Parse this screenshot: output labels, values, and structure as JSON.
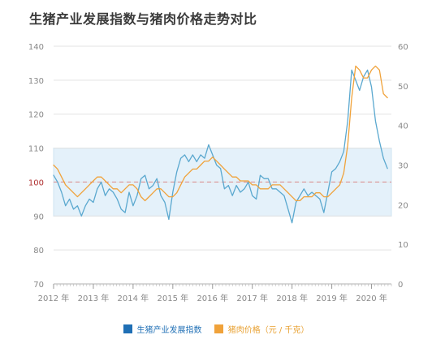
{
  "title": "生猪产业发展指数与猪肉价格走势对比",
  "chart_data": {
    "type": "line",
    "left_axis": {
      "range": [
        70,
        140
      ],
      "ticks": [
        70,
        80,
        90,
        100,
        110,
        120,
        130,
        140
      ]
    },
    "right_axis": {
      "range": [
        0,
        60
      ],
      "ticks": [
        0,
        10,
        20,
        30,
        40,
        50,
        60
      ]
    },
    "x_range": [
      2012,
      2020.5
    ],
    "x_ticks": [
      "2012 年",
      "2013 年",
      "2014 年",
      "2015 年",
      "2016 年",
      "2017 年",
      "2018 年",
      "2019 年",
      "2020 年"
    ],
    "band": [
      90,
      110
    ],
    "reference_line": 100,
    "series": [
      {
        "name": "生猪产业发展指数",
        "axis": "left",
        "color": "#5aa8cf",
        "points": [
          [
            2012.0,
            102
          ],
          [
            2012.1,
            100
          ],
          [
            2012.2,
            97
          ],
          [
            2012.3,
            93
          ],
          [
            2012.4,
            95
          ],
          [
            2012.5,
            92
          ],
          [
            2012.6,
            93
          ],
          [
            2012.7,
            90
          ],
          [
            2012.8,
            93
          ],
          [
            2012.9,
            95
          ],
          [
            2013.0,
            94
          ],
          [
            2013.1,
            98
          ],
          [
            2013.2,
            100
          ],
          [
            2013.3,
            96
          ],
          [
            2013.4,
            98
          ],
          [
            2013.5,
            97
          ],
          [
            2013.6,
            95
          ],
          [
            2013.7,
            92
          ],
          [
            2013.8,
            91
          ],
          [
            2013.9,
            97
          ],
          [
            2014.0,
            93
          ],
          [
            2014.1,
            96
          ],
          [
            2014.2,
            101
          ],
          [
            2014.3,
            102
          ],
          [
            2014.4,
            98
          ],
          [
            2014.5,
            99
          ],
          [
            2014.6,
            101
          ],
          [
            2014.7,
            96
          ],
          [
            2014.8,
            94
          ],
          [
            2014.9,
            89
          ],
          [
            2015.0,
            97
          ],
          [
            2015.1,
            103
          ],
          [
            2015.2,
            107
          ],
          [
            2015.3,
            108
          ],
          [
            2015.4,
            106
          ],
          [
            2015.5,
            108
          ],
          [
            2015.6,
            106
          ],
          [
            2015.7,
            108
          ],
          [
            2015.8,
            107
          ],
          [
            2015.9,
            111
          ],
          [
            2016.0,
            108
          ],
          [
            2016.1,
            105
          ],
          [
            2016.2,
            104
          ],
          [
            2016.3,
            98
          ],
          [
            2016.4,
            99
          ],
          [
            2016.5,
            96
          ],
          [
            2016.6,
            99
          ],
          [
            2016.7,
            97
          ],
          [
            2016.8,
            98
          ],
          [
            2016.9,
            100
          ],
          [
            2017.0,
            96
          ],
          [
            2017.1,
            95
          ],
          [
            2017.2,
            102
          ],
          [
            2017.3,
            101
          ],
          [
            2017.4,
            101
          ],
          [
            2017.5,
            98
          ],
          [
            2017.6,
            98
          ],
          [
            2017.7,
            97
          ],
          [
            2017.8,
            96
          ],
          [
            2017.9,
            92
          ],
          [
            2018.0,
            88
          ],
          [
            2018.1,
            94
          ],
          [
            2018.2,
            96
          ],
          [
            2018.3,
            98
          ],
          [
            2018.4,
            96
          ],
          [
            2018.5,
            97
          ],
          [
            2018.6,
            96
          ],
          [
            2018.7,
            95
          ],
          [
            2018.8,
            91
          ],
          [
            2018.9,
            97
          ],
          [
            2019.0,
            103
          ],
          [
            2019.1,
            104
          ],
          [
            2019.2,
            106
          ],
          [
            2019.3,
            109
          ],
          [
            2019.4,
            118
          ],
          [
            2019.5,
            133
          ],
          [
            2019.6,
            130
          ],
          [
            2019.7,
            127
          ],
          [
            2019.8,
            131
          ],
          [
            2019.9,
            133
          ],
          [
            2020.0,
            128
          ],
          [
            2020.1,
            118
          ],
          [
            2020.2,
            112
          ],
          [
            2020.3,
            107
          ],
          [
            2020.4,
            104
          ]
        ]
      },
      {
        "name": "猪肉价格（元 / 千克）",
        "axis": "right",
        "color": "#f0a23a",
        "points": [
          [
            2012.0,
            30
          ],
          [
            2012.1,
            29
          ],
          [
            2012.2,
            27
          ],
          [
            2012.3,
            25
          ],
          [
            2012.4,
            24
          ],
          [
            2012.5,
            23
          ],
          [
            2012.6,
            22
          ],
          [
            2012.7,
            23
          ],
          [
            2012.8,
            24
          ],
          [
            2012.9,
            25
          ],
          [
            2013.0,
            26
          ],
          [
            2013.1,
            27
          ],
          [
            2013.2,
            27
          ],
          [
            2013.3,
            26
          ],
          [
            2013.4,
            25
          ],
          [
            2013.5,
            24
          ],
          [
            2013.6,
            24
          ],
          [
            2013.7,
            23
          ],
          [
            2013.8,
            24
          ],
          [
            2013.9,
            25
          ],
          [
            2014.0,
            25
          ],
          [
            2014.1,
            24
          ],
          [
            2014.2,
            22
          ],
          [
            2014.3,
            21
          ],
          [
            2014.4,
            22
          ],
          [
            2014.5,
            23
          ],
          [
            2014.6,
            24
          ],
          [
            2014.7,
            24
          ],
          [
            2014.8,
            23
          ],
          [
            2014.9,
            22
          ],
          [
            2015.0,
            22
          ],
          [
            2015.1,
            23
          ],
          [
            2015.2,
            25
          ],
          [
            2015.3,
            27
          ],
          [
            2015.4,
            28
          ],
          [
            2015.5,
            29
          ],
          [
            2015.6,
            29
          ],
          [
            2015.7,
            30
          ],
          [
            2015.8,
            31
          ],
          [
            2015.9,
            31
          ],
          [
            2016.0,
            32
          ],
          [
            2016.1,
            31
          ],
          [
            2016.2,
            30
          ],
          [
            2016.3,
            29
          ],
          [
            2016.4,
            28
          ],
          [
            2016.5,
            27
          ],
          [
            2016.6,
            27
          ],
          [
            2016.7,
            26
          ],
          [
            2016.8,
            26
          ],
          [
            2016.9,
            26
          ],
          [
            2017.0,
            25
          ],
          [
            2017.1,
            25
          ],
          [
            2017.2,
            24
          ],
          [
            2017.3,
            24
          ],
          [
            2017.4,
            24
          ],
          [
            2017.5,
            25
          ],
          [
            2017.6,
            25
          ],
          [
            2017.7,
            25
          ],
          [
            2017.8,
            24
          ],
          [
            2017.9,
            23
          ],
          [
            2018.0,
            22
          ],
          [
            2018.1,
            21
          ],
          [
            2018.2,
            21
          ],
          [
            2018.3,
            22
          ],
          [
            2018.4,
            22
          ],
          [
            2018.5,
            22
          ],
          [
            2018.6,
            23
          ],
          [
            2018.7,
            23
          ],
          [
            2018.8,
            22
          ],
          [
            2018.9,
            22
          ],
          [
            2019.0,
            23
          ],
          [
            2019.1,
            24
          ],
          [
            2019.2,
            25
          ],
          [
            2019.3,
            28
          ],
          [
            2019.4,
            35
          ],
          [
            2019.5,
            47
          ],
          [
            2019.6,
            55
          ],
          [
            2019.7,
            54
          ],
          [
            2019.8,
            52
          ],
          [
            2019.9,
            52
          ],
          [
            2020.0,
            54
          ],
          [
            2020.1,
            55
          ],
          [
            2020.2,
            54
          ],
          [
            2020.3,
            48
          ],
          [
            2020.4,
            47
          ]
        ]
      }
    ]
  },
  "legend": [
    {
      "label": "生猪产业发展指数",
      "color": "#1f6fb5"
    },
    {
      "label": "猪肉价格（元 / 千克）",
      "color": "#e8a030"
    }
  ]
}
